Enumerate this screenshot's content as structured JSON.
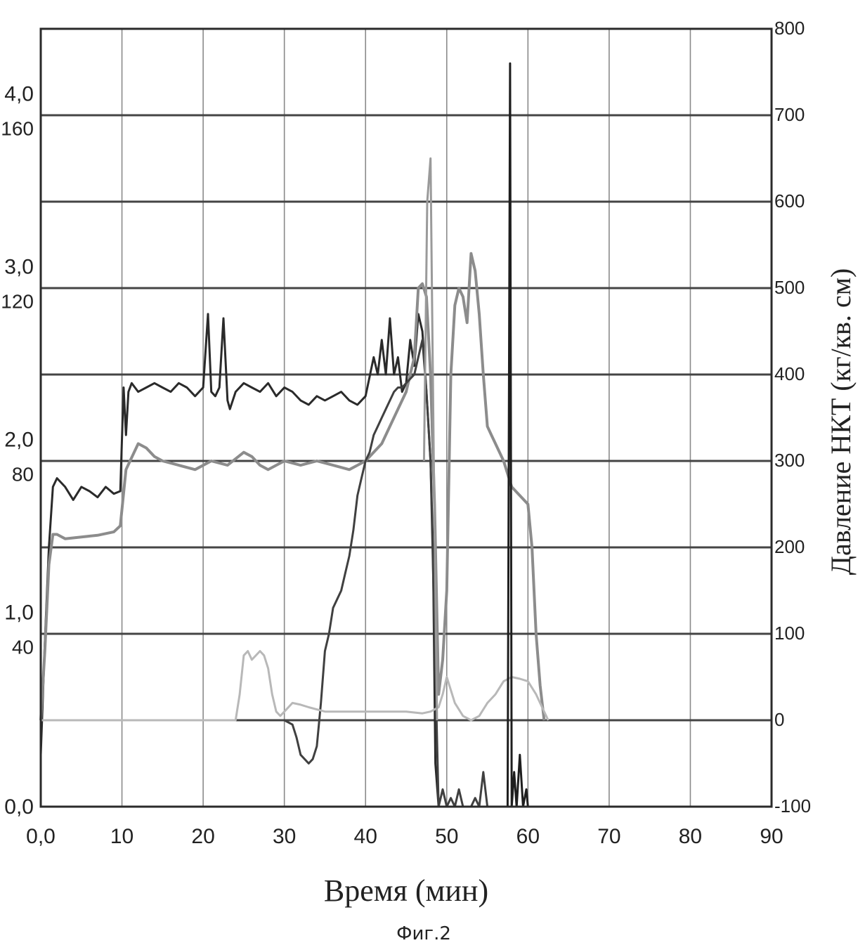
{
  "chart_data": {
    "type": "line",
    "title": "",
    "xlabel": "Время (мин)",
    "ylabel_right": "Давление НКТ (кг/кв. см)",
    "caption": "Фиг.2",
    "xlim": [
      0,
      90
    ],
    "ylim_right": [
      -100,
      800
    ],
    "x_ticks": [
      "0,0",
      "10",
      "20",
      "30",
      "40",
      "50",
      "60",
      "70",
      "80",
      "90"
    ],
    "right_ticks": [
      "-100",
      "0",
      "100",
      "200",
      "300",
      "400",
      "500",
      "600",
      "700",
      "800"
    ],
    "left_ticks_primary": [
      {
        "label": "0,0",
        "right_value": -100
      },
      {
        "label": "1,0",
        "right_value": 125
      },
      {
        "label": "2,0",
        "right_value": 325
      },
      {
        "label": "3,0",
        "right_value": 525
      },
      {
        "label": "4,0",
        "right_value": 725
      }
    ],
    "left_ticks_secondary": [
      {
        "label": "40",
        "right_value": 85
      },
      {
        "label": "80",
        "right_value": 285
      },
      {
        "label": "120",
        "right_value": 485
      },
      {
        "label": "160",
        "right_value": 685
      }
    ],
    "grid": true,
    "series": [
      {
        "color": "#2a2a2a",
        "x": [
          0,
          0.5,
          1,
          1.5,
          2,
          3,
          4,
          5,
          6,
          7,
          8,
          9,
          9.8,
          10.2,
          10.5,
          10.8,
          11.2,
          12,
          13,
          14,
          15,
          16,
          17,
          18,
          19,
          20,
          20.6,
          21,
          21.5,
          22,
          22.5,
          23,
          23.3,
          24,
          25,
          26,
          27,
          28,
          29,
          30,
          31,
          32,
          33,
          34,
          35,
          36,
          37,
          38,
          39,
          40,
          41,
          41.5,
          42,
          42.5,
          43,
          43.5,
          44,
          44.5,
          45,
          45.5,
          46,
          46.5,
          47,
          47.5,
          48,
          48.3,
          48.6,
          49
        ],
        "y": [
          -40,
          90,
          200,
          270,
          280,
          270,
          255,
          270,
          265,
          258,
          270,
          262,
          265,
          385,
          330,
          380,
          390,
          380,
          385,
          390,
          385,
          380,
          390,
          385,
          375,
          385,
          470,
          380,
          375,
          385,
          465,
          370,
          360,
          380,
          390,
          385,
          380,
          390,
          375,
          385,
          380,
          370,
          365,
          375,
          370,
          375,
          380,
          370,
          365,
          375,
          420,
          400,
          440,
          400,
          465,
          400,
          420,
          380,
          390,
          440,
          410,
          470,
          450,
          380,
          300,
          200,
          -50,
          -100
        ]
      },
      {
        "color": "#8c8c8c",
        "x": [
          0,
          0.5,
          1,
          1.5,
          2,
          3,
          5,
          7,
          9,
          9.8,
          10.5,
          11,
          12,
          13,
          14,
          15,
          17,
          19,
          21,
          23,
          25,
          26,
          27,
          28,
          29,
          30,
          32,
          34,
          36,
          38,
          40,
          42,
          44,
          45,
          46,
          46.5,
          47,
          47.5,
          48,
          48.5,
          49,
          49.5,
          50,
          50.5,
          51,
          51.5,
          52,
          52.5,
          53,
          53.5,
          54,
          54.5,
          55,
          55.5,
          56,
          57,
          58,
          59,
          60,
          60.5,
          61,
          61.5,
          62
        ],
        "y": [
          0,
          80,
          180,
          215,
          215,
          210,
          212,
          214,
          218,
          225,
          290,
          300,
          320,
          315,
          305,
          300,
          295,
          290,
          300,
          295,
          310,
          305,
          295,
          290,
          295,
          300,
          295,
          300,
          295,
          290,
          300,
          320,
          360,
          380,
          420,
          500,
          505,
          490,
          400,
          250,
          30,
          70,
          150,
          400,
          480,
          500,
          490,
          460,
          540,
          520,
          470,
          400,
          340,
          330,
          320,
          300,
          270,
          260,
          250,
          200,
          100,
          40,
          0
        ]
      },
      {
        "color": "#404040",
        "x": [
          0,
          10,
          20,
          30,
          31,
          31.5,
          32,
          33,
          33.5,
          34,
          34.5,
          35,
          35.5,
          36,
          36.5,
          37,
          37.5,
          38,
          38.5,
          39,
          39.5,
          40,
          40.5,
          41,
          41.5,
          42,
          42.5,
          43,
          43.5,
          44,
          44.5,
          45,
          45.5,
          46,
          46.5,
          47,
          47.5,
          48,
          48.5,
          49,
          49.5,
          50,
          50.5,
          51,
          51.5,
          52,
          53,
          53.5,
          54,
          54.5,
          55
        ],
        "y": [
          0,
          0,
          0,
          0,
          -5,
          -20,
          -40,
          -50,
          -45,
          -30,
          20,
          80,
          100,
          130,
          140,
          150,
          170,
          190,
          220,
          260,
          280,
          300,
          310,
          330,
          340,
          350,
          360,
          370,
          380,
          385,
          385,
          390,
          395,
          400,
          420,
          440,
          380,
          300,
          100,
          -100,
          -80,
          -100,
          -90,
          -100,
          -80,
          -100,
          -100,
          -90,
          -100,
          -60,
          -100
        ]
      },
      {
        "color": "#b8b8b8",
        "x": [
          0,
          5,
          10,
          15,
          20,
          22,
          23,
          24,
          24.5,
          25,
          25.5,
          26,
          27,
          27.5,
          28,
          28.5,
          29,
          29.5,
          30,
          31,
          32,
          33,
          35,
          40,
          45,
          47,
          48,
          49,
          49.5,
          50,
          51,
          52,
          53,
          54,
          55,
          56,
          57,
          58,
          59,
          60,
          61,
          62,
          62.5
        ],
        "y": [
          0,
          0,
          0,
          0,
          0,
          0,
          0,
          0,
          30,
          75,
          80,
          70,
          80,
          75,
          60,
          30,
          10,
          5,
          10,
          20,
          18,
          15,
          10,
          10,
          10,
          8,
          10,
          15,
          30,
          50,
          20,
          5,
          0,
          5,
          20,
          30,
          45,
          50,
          48,
          45,
          30,
          10,
          0
        ]
      },
      {
        "color": "#1e1e1e",
        "x": [
          57.5,
          57.8,
          58,
          58.3,
          58.6,
          59,
          59.4,
          59.8,
          60
        ],
        "y": [
          -100,
          760,
          -100,
          -60,
          -100,
          -40,
          -100,
          -80,
          -100
        ]
      },
      {
        "color": "#9a9a9a",
        "x": [
          47.2,
          47.6,
          48.0,
          48.4,
          48.8
        ],
        "y": [
          300,
          600,
          650,
          300,
          0
        ]
      }
    ]
  }
}
